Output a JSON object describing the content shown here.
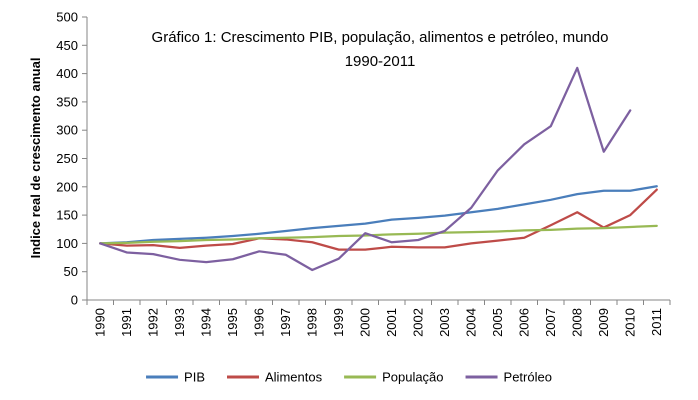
{
  "chart_data": {
    "type": "line",
    "title_line1": "Gráfico 1: Crescimento PIB, população,  alimentos e petróleo, mundo",
    "title_line2": "1990-2011",
    "xlabel": "",
    "ylabel": "Indice real de crescimento anual",
    "ylim": [
      0,
      500
    ],
    "yticks": [
      0,
      50,
      100,
      150,
      200,
      250,
      300,
      350,
      400,
      450,
      500
    ],
    "grid": false,
    "legend_position": "bottom",
    "categories": [
      "1990",
      "1991",
      "1992",
      "1993",
      "1994",
      "1995",
      "1996",
      "1997",
      "1998",
      "1999",
      "2000",
      "2001",
      "2002",
      "2003",
      "2004",
      "2005",
      "2006",
      "2007",
      "2008",
      "2009",
      "2010",
      "2011"
    ],
    "series": [
      {
        "name": "PIB",
        "color": "#4a7ebb",
        "values": [
          100,
          102,
          106,
          108,
          110,
          113,
          117,
          122,
          127,
          131,
          135,
          142,
          145,
          149,
          155,
          161,
          169,
          177,
          187,
          193,
          193,
          201
        ]
      },
      {
        "name": "Alimentos",
        "color": "#be4b48",
        "values": [
          100,
          96,
          97,
          92,
          96,
          99,
          109,
          107,
          102,
          89,
          89,
          94,
          93,
          93,
          100,
          105,
          110,
          132,
          155,
          128,
          150,
          195
        ]
      },
      {
        "name": "População",
        "color": "#98b954",
        "values": [
          100,
          101,
          103,
          104,
          106,
          107,
          109,
          110,
          111,
          113,
          114,
          116,
          117,
          119,
          120,
          121,
          123,
          124,
          126,
          127,
          129,
          131
        ]
      },
      {
        "name": "Petróleo",
        "color": "#7d60a0",
        "values": [
          100,
          84,
          81,
          71,
          67,
          72,
          86,
          80,
          53,
          73,
          118,
          102,
          106,
          122,
          163,
          229,
          275,
          307,
          410,
          262,
          335,
          null
        ]
      }
    ]
  }
}
